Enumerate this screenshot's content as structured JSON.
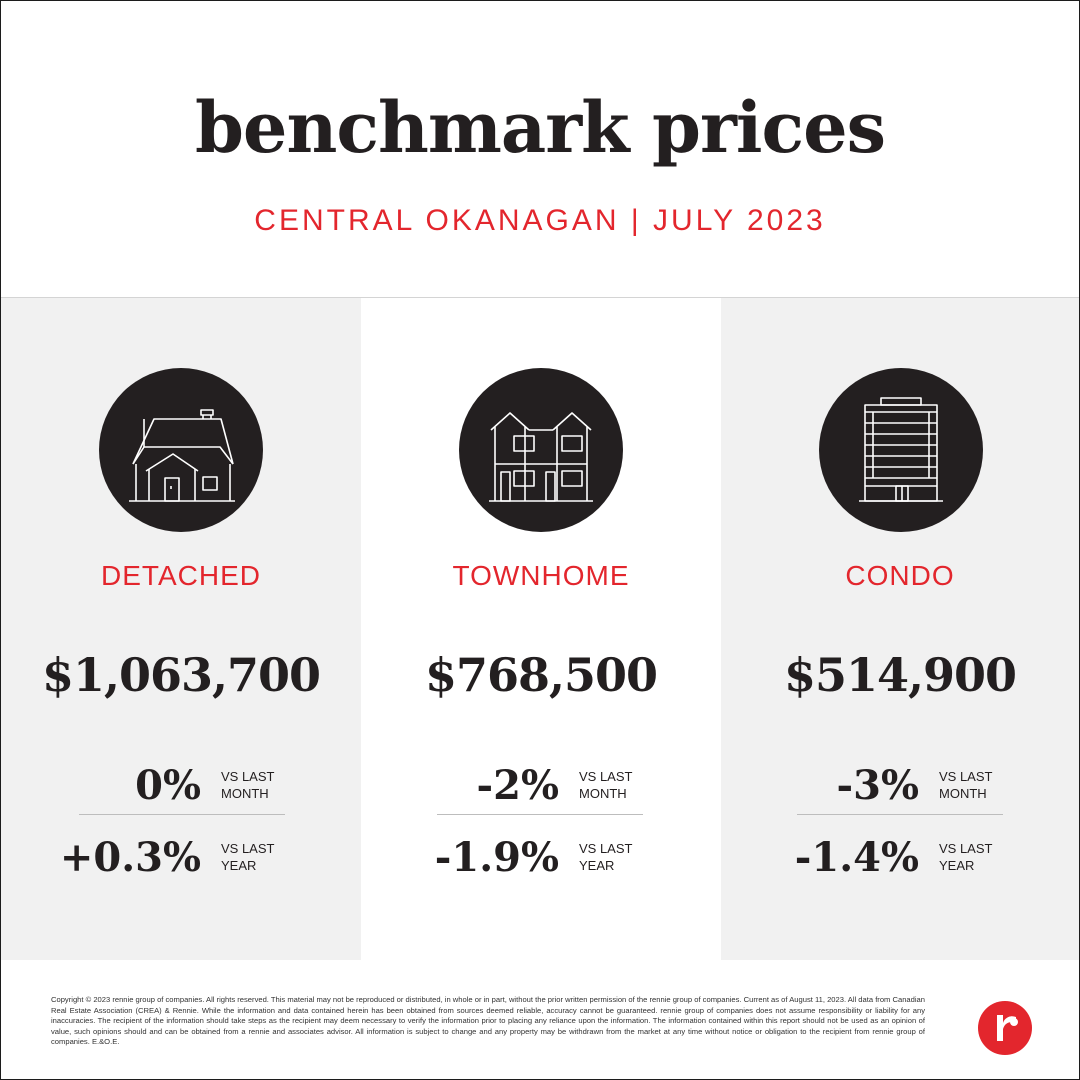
{
  "header": {
    "title": "benchmark prices",
    "subtitle": "CENTRAL OKANAGAN | JULY 2023"
  },
  "columns": [
    {
      "icon": "detached-house-icon",
      "category": "DETACHED",
      "price": "$1,063,700",
      "month_change": "0%",
      "month_label": "VS LAST MONTH",
      "year_change": "+0.3%",
      "year_label": "VS LAST YEAR"
    },
    {
      "icon": "townhome-icon",
      "category": "TOWNHOME",
      "price": "$768,500",
      "month_change": "-2%",
      "month_label": "VS LAST MONTH",
      "year_change": "-1.9%",
      "year_label": "VS LAST YEAR"
    },
    {
      "icon": "condo-building-icon",
      "category": "CONDO",
      "price": "$514,900",
      "month_change": "-3%",
      "month_label": "VS LAST MONTH",
      "year_change": "-1.4%",
      "year_label": "VS LAST YEAR"
    }
  ],
  "footer": {
    "disclaimer": "Copyright © 2023 rennie group of companies. All rights reserved. This material may not be reproduced or distributed, in whole or in part, without the prior written permission of the rennie group of companies. Current as of August 11, 2023. All data from Canadian Real Estate Association (CREA) & Rennie. While the information and data contained herein has been obtained from sources deemed reliable, accuracy cannot be guaranteed. rennie group of companies does not assume responsibility or liability for any inaccuracies. The recipient of the information should take steps as the recipient may deem necessary to verify the information prior to placing any reliance upon the information. The information contained within this report should not be used as an opinion of value, such opinions should and can be obtained from a rennie and associates advisor. All information is subject to change and any property may be withdrawn from the market at any time without notice or obligation to the recipient from rennie group of companies. E.&O.E.",
    "logo": "rennie-logo"
  },
  "colors": {
    "accent_red": "#e3262d",
    "text_dark": "#231f20",
    "panel_grey": "#f1f1f1"
  }
}
